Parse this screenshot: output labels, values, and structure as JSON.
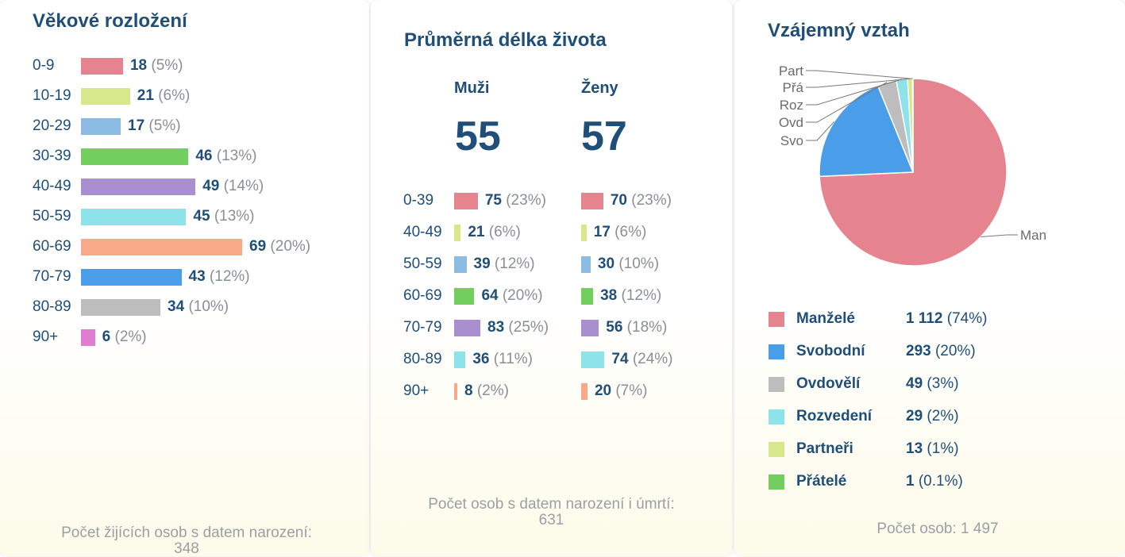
{
  "chart_data": [
    {
      "type": "bar",
      "title": "Věkové rozložení",
      "categories": [
        "0-9",
        "10-19",
        "20-29",
        "30-39",
        "40-49",
        "50-59",
        "60-69",
        "70-79",
        "80-89",
        "90+"
      ],
      "values": [
        18,
        21,
        17,
        46,
        49,
        45,
        69,
        43,
        34,
        6
      ],
      "percents": [
        "(5%)",
        "(6%)",
        "(5%)",
        "(13%)",
        "(14%)",
        "(13%)",
        "(20%)",
        "(12%)",
        "(10%)",
        "(2%)"
      ],
      "colors": [
        "#e5848f",
        "#d6e88a",
        "#8cbbe4",
        "#72cf5e",
        "#aa8fd0",
        "#8ee3ea",
        "#f8a987",
        "#4a9de8",
        "#bdbdbd",
        "#e07cd2"
      ],
      "footer": "Počet žijících osob s datem narození:",
      "footer_count": "348"
    },
    {
      "type": "bar",
      "title": "Průměrná délka života",
      "columns": [
        {
          "label": "Muži",
          "average": "55"
        },
        {
          "label": "Ženy",
          "average": "57"
        }
      ],
      "categories": [
        "0-39",
        "40-49",
        "50-59",
        "60-69",
        "70-79",
        "80-89",
        "90+"
      ],
      "series": [
        {
          "name": "Muži",
          "values": [
            75,
            21,
            39,
            64,
            83,
            36,
            8
          ],
          "percents": [
            "(23%)",
            "(6%)",
            "(12%)",
            "(20%)",
            "(25%)",
            "(11%)",
            "(2%)"
          ]
        },
        {
          "name": "Ženy",
          "values": [
            70,
            17,
            30,
            38,
            56,
            74,
            20
          ],
          "percents": [
            "(23%)",
            "(6%)",
            "(10%)",
            "(12%)",
            "(18%)",
            "(24%)",
            "(7%)"
          ]
        }
      ],
      "colors": [
        "#e5848f",
        "#d6e88a",
        "#8cbbe4",
        "#72cf5e",
        "#aa8fd0",
        "#8ee3ea",
        "#f8a987"
      ],
      "footer": "Počet osob s datem narození i úmrtí:",
      "footer_count": "631"
    },
    {
      "type": "pie",
      "title": "Vzájemný vztah",
      "slices": [
        {
          "name": "Manželé",
          "value": 1112,
          "display": "1 112",
          "percent": "(74%)",
          "color": "#e5848f",
          "pie_label": "Man"
        },
        {
          "name": "Svobodní",
          "value": 293,
          "display": "293",
          "percent": "(20%)",
          "color": "#4a9de8",
          "pie_label": "Svo"
        },
        {
          "name": "Ovdovělí",
          "value": 49,
          "display": "49",
          "percent": "(3%)",
          "color": "#bdbdbd",
          "pie_label": "Ovd"
        },
        {
          "name": "Rozvedení",
          "value": 29,
          "display": "29",
          "percent": "(2%)",
          "color": "#8ee3ea",
          "pie_label": "Roz"
        },
        {
          "name": "Partneři",
          "value": 13,
          "display": "13",
          "percent": "(1%)",
          "color": "#d6e88a",
          "pie_label": "Part"
        },
        {
          "name": "Přátelé",
          "value": 1,
          "display": "1",
          "percent": "(0.1%)",
          "color": "#72cf5e",
          "pie_label": "Přá"
        }
      ],
      "footer": "Počet osob: 1 497"
    }
  ]
}
